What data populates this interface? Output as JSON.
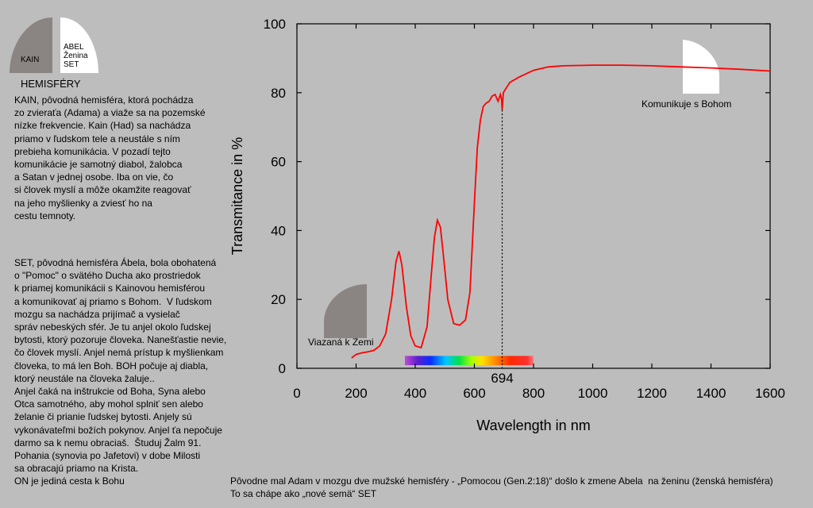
{
  "hemispheres": {
    "kain_label": "KAIN",
    "abel_label_lines": [
      "ABEL",
      "Ženina",
      "SET"
    ],
    "title": "HEMISFÉRY"
  },
  "kain_text": "KAIN, pôvodná hemisféra, ktorá pochádza\nzo zvieraťa (Adama) a viaže sa na pozemské\nnízke frekvencie. Kain (Had) sa nachádza\npriamo v ľudskom tele a neustále s ním\nprebieha komunikácia. V pozadí tejto\nkomunikácie je samotný diabol, žalobca\na Satan v jednej osobe. Iba on vie, čo\nsi človek myslí a môže okamžite reagovať\nna jeho myšlienky a zviesť ho na\ncestu temnoty.",
  "set_text": "SET, pôvodná hemisféra Ábela, bola obohatená\no \"Pomoc\" o svätého Ducha ako prostriedok\nk priamej komunikácii s Kainovou hemisférou\na komunikovať aj priamo s Bohom.  V ľudskom\nmozgu sa nachádza prijímač a vysielač\nspráv nebeských sfér. Je tu anjel okolo ľudskej\nbytosti, ktorý pozoruje človeka. Nanešťastie nevie,\nčo človek myslí. Anjel nemá prístup k myšlienkam\nčloveka, to má len Boh. BOH počuje aj diabla,\nktorý neustále na človeka žaluje..\nAnjel čaká na inštrukcie od Boha, Syna alebo\nOtca samotného, aby mohol splniť sen alebo\nželanie či prianie ľudskej bytosti. Anjely sú\nvykonávateľmi božích pokynov. Anjel ťa nepočuje\ndarmo sa k nemu obraciaš.  Študuj Žalm 91.\nPohania (synovia po Jafetovi) v dobe Milosti\nsa obracajú priamo na Krista.\nON je jediná cesta k Bohu",
  "bottom_text": "Pôvodne mal Adam v mozgu dve mužské hemisféry - „Pomocou (Gen.2:18)“ došlo k zmene Abela  na ženinu (ženská hemisféra)\nTo sa chápe ako „nové semä“ SET",
  "colors": {
    "curve": "#ff0000",
    "background": "#bdbdbd",
    "kain_gray": "#8a8583",
    "abel_white": "#ffffff"
  },
  "chart_data": {
    "type": "line",
    "title": "",
    "xlabel": "Wavelength in nm",
    "ylabel": "Transmitance in %",
    "xlim": [
      0,
      1600
    ],
    "ylim": [
      0,
      100
    ],
    "xticks": [
      0,
      200,
      400,
      600,
      800,
      1000,
      1200,
      1400,
      1600
    ],
    "yticks": [
      0,
      20,
      40,
      60,
      80,
      100
    ],
    "grid": false,
    "series": [
      {
        "x": [
          185,
          200,
          220,
          240,
          260,
          280,
          300,
          320,
          335,
          345,
          355,
          370,
          385,
          400,
          420,
          440,
          455,
          465,
          475,
          485,
          495,
          510,
          530,
          550,
          570,
          585,
          600,
          610,
          620,
          630,
          640,
          650,
          660,
          670,
          680,
          688,
          692,
          694,
          698,
          705,
          720,
          750,
          800,
          850,
          900,
          1000,
          1100,
          1200,
          1300,
          1400,
          1500,
          1600
        ],
        "y": [
          3,
          4,
          4.5,
          4.8,
          5.2,
          6.5,
          10,
          20,
          31,
          34,
          30,
          18,
          9.5,
          6.5,
          6,
          12,
          28,
          38,
          43,
          41,
          33,
          20,
          13,
          12.5,
          14,
          22,
          48,
          64,
          72,
          76,
          77,
          77.5,
          79,
          79.5,
          77.5,
          79.5,
          78,
          75,
          80,
          81,
          83,
          84.5,
          86.5,
          87.5,
          87.8,
          88,
          88,
          87.8,
          87.5,
          87.2,
          86.8,
          86.3
        ]
      }
    ],
    "marker_line": {
      "x": 694,
      "label": "694"
    },
    "spectrum_band": {
      "x_start": 365,
      "x_end": 800
    },
    "annotations": [
      {
        "text": "Komunikuje s Bohom"
      },
      {
        "text": "Viazaná k Zemi"
      }
    ]
  }
}
